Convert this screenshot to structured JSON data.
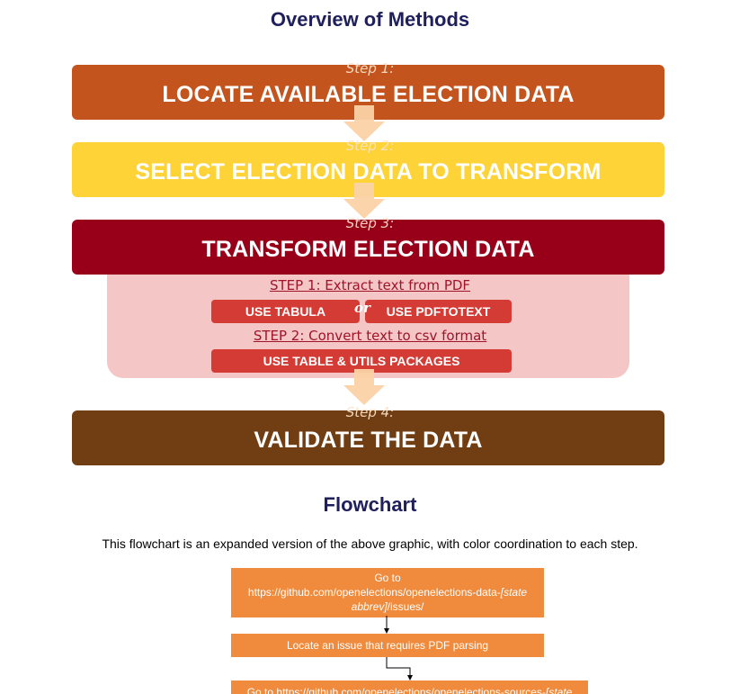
{
  "overview": {
    "title": "Overview of Methods",
    "steps": [
      {
        "label": "Step 1:",
        "title": "LOCATE AVAILABLE ELECTION DATA",
        "color": "#c4541e"
      },
      {
        "label": "Step 2:",
        "title": "SELECT ELECTION DATA TO TRANSFORM",
        "color": "#fdd338"
      },
      {
        "label": "Step 3:",
        "title": "TRANSFORM ELECTION DATA",
        "color": "#98001a"
      },
      {
        "label": "Step 4:",
        "title": "VALIDATE THE DATA",
        "color": "#713d13"
      }
    ],
    "substeps": {
      "extract": "STEP 1: Extract text from PDF",
      "tabula": "USE TABULA",
      "or": "or",
      "pdftotext": "USE PDFTOTEXT",
      "convert": "STEP 2: Convert text to csv format",
      "packages": "USE TABLE & UTILS PACKAGES"
    }
  },
  "flowchart": {
    "title": "Flowchart",
    "description": "This flowchart is an expanded version of the above graphic, with color coordination to each step.",
    "node1": {
      "line1": "Go to",
      "line2a": "https://github.com/openelections/openelections-data-",
      "line2b": "[state",
      "line3a": "abbrev]",
      "line3b": "/issues/"
    },
    "node2": "Locate an issue that requires PDF parsing",
    "node3a": "Go to https://github.com/openelections/openelections-sources-",
    "node3b": "[state"
  }
}
